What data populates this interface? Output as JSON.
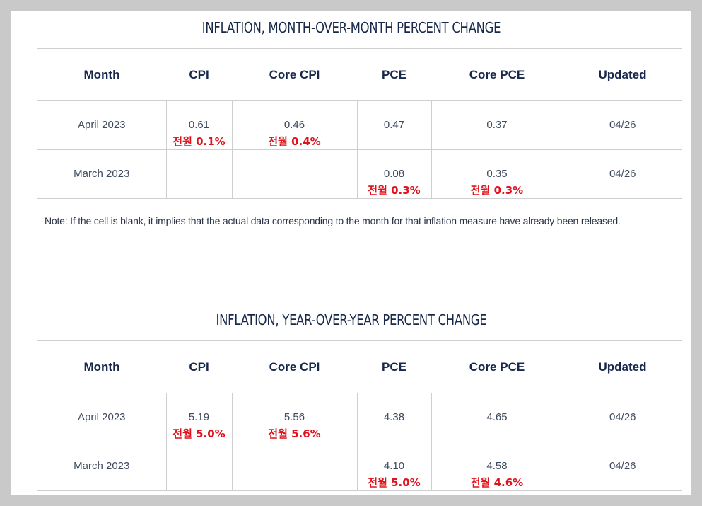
{
  "mom": {
    "title": "INFLATION, MONTH-OVER-MONTH PERCENT CHANGE",
    "headers": [
      "Month",
      "CPI",
      "Core CPI",
      "PCE",
      "Core PCE",
      "Updated"
    ],
    "rows": [
      {
        "month": "April 2023",
        "cpi": "0.61",
        "cpi_note": "전원 0.1%",
        "core_cpi": "0.46",
        "core_cpi_note": "전월 0.4%",
        "pce": "0.47",
        "pce_note": "",
        "core_pce": "0.37",
        "core_pce_note": "",
        "updated": "04/26"
      },
      {
        "month": "March 2023",
        "cpi": "",
        "cpi_note": "",
        "core_cpi": "",
        "core_cpi_note": "",
        "pce": "0.08",
        "pce_note": "전월 0.3%",
        "core_pce": "0.35",
        "core_pce_note": "전월 0.3%",
        "updated": "04/26"
      }
    ]
  },
  "note": "Note: If the cell is blank, it implies that the actual data corresponding to the month for that inflation measure have already been released.",
  "yoy": {
    "title": "INFLATION, YEAR-OVER-YEAR PERCENT CHANGE",
    "headers": [
      "Month",
      "CPI",
      "Core CPI",
      "PCE",
      "Core PCE",
      "Updated"
    ],
    "rows": [
      {
        "month": "April 2023",
        "cpi": "5.19",
        "cpi_note": "전월 5.0%",
        "core_cpi": "5.56",
        "core_cpi_note": "전월 5.6%",
        "pce": "4.38",
        "pce_note": "",
        "core_pce": "4.65",
        "core_pce_note": "",
        "updated": "04/26"
      },
      {
        "month": "March 2023",
        "cpi": "",
        "cpi_note": "",
        "core_cpi": "",
        "core_cpi_note": "",
        "pce": "4.10",
        "pce_note": "전월 5.0%",
        "core_pce": "4.58",
        "core_pce_note": "전월 4.6%",
        "updated": "04/26"
      }
    ]
  },
  "colors": {
    "heading": "#17284a",
    "body_text": "#3e4a5e",
    "annotation_red": "#e0121b",
    "frame": "#c9c9c9"
  }
}
